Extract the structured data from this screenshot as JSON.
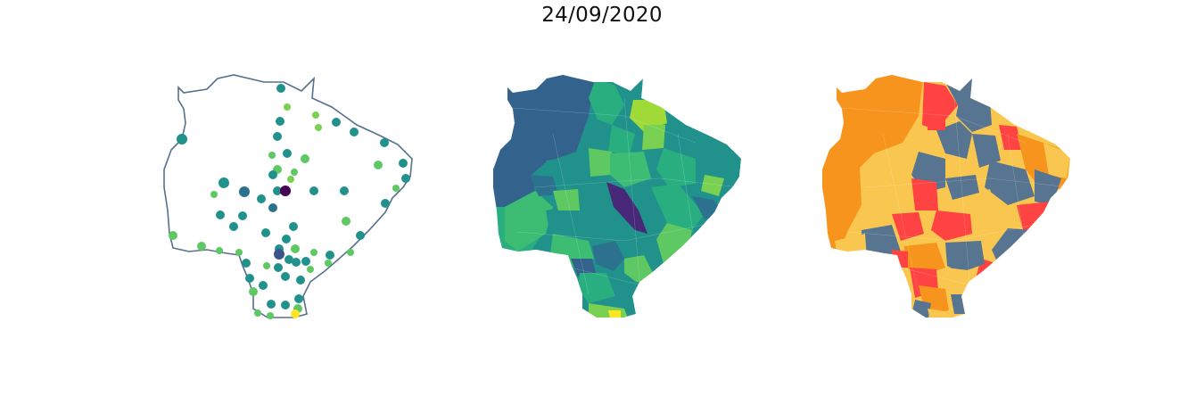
{
  "title": "24/09/2020",
  "palette": {
    "viridis": [
      "#440154",
      "#3b528b",
      "#21918c",
      "#5ec962",
      "#fde725"
    ],
    "state_outline": "#56708d",
    "risk_orange": "#f7941d",
    "risk_yellow": "#f9c74f",
    "risk_red": "#ff4242",
    "risk_slate": "#577590"
  },
  "panels": [
    {
      "id": "points-map",
      "kind": "point-map"
    },
    {
      "id": "choropleth-viridis",
      "kind": "choropleth"
    },
    {
      "id": "choropleth-categorical",
      "kind": "choropleth"
    }
  ]
}
